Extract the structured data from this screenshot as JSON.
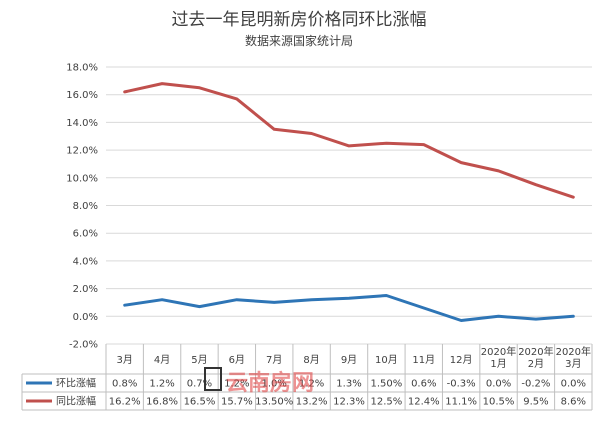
{
  "chart_data": {
    "type": "line",
    "title": "过去一年昆明新房价格同环比涨幅",
    "subtitle": "数据来源国家统计局",
    "categories": [
      [
        "3月"
      ],
      [
        "4月"
      ],
      [
        "5月"
      ],
      [
        "6月"
      ],
      [
        "7月"
      ],
      [
        "8月"
      ],
      [
        "9月"
      ],
      [
        "10月"
      ],
      [
        "11月"
      ],
      [
        "12月"
      ],
      [
        "2020年",
        "1月"
      ],
      [
        "2020年",
        "2月"
      ],
      [
        "2020年",
        "3月"
      ]
    ],
    "ylim": [
      -2.0,
      18.0
    ],
    "yticks": [
      "-2.0%",
      "0.0%",
      "2.0%",
      "4.0%",
      "6.0%",
      "8.0%",
      "10.0%",
      "12.0%",
      "14.0%",
      "16.0%",
      "18.0%"
    ],
    "ytick_values": [
      -2,
      0,
      2,
      4,
      6,
      8,
      10,
      12,
      14,
      16,
      18
    ],
    "grid": true,
    "legend": "bottom-table",
    "series": [
      {
        "name": "环比涨幅",
        "color": "#2e75b6",
        "values": [
          0.8,
          1.2,
          0.7,
          1.2,
          1.0,
          1.2,
          1.3,
          1.5,
          0.6,
          -0.3,
          0.0,
          -0.2,
          0.0
        ],
        "labels": [
          "0.8%",
          "1.2%",
          "0.7%",
          "1.2%",
          "1.0%",
          "1.2%",
          "1.3%",
          "1.50%",
          "0.6%",
          "-0.3%",
          "0.0%",
          "-0.2%",
          "0.0%"
        ]
      },
      {
        "name": "同比涨幅",
        "color": "#c0504d",
        "values": [
          16.2,
          16.8,
          16.5,
          15.7,
          13.5,
          13.2,
          12.3,
          12.5,
          12.4,
          11.1,
          10.5,
          9.5,
          8.6
        ],
        "labels": [
          "16.2%",
          "16.8%",
          "16.5%",
          "15.7%",
          "13.50%",
          "13.2%",
          "12.3%",
          "12.5%",
          "12.4%",
          "11.1%",
          "10.5%",
          "9.5%",
          "8.6%"
        ]
      }
    ]
  },
  "watermark": {
    "text": "云南房网",
    "color": "#e03a3a"
  }
}
